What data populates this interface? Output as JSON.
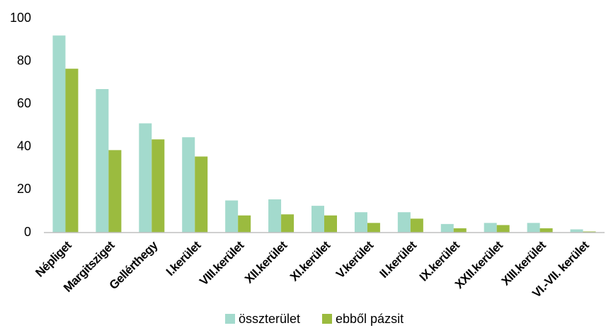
{
  "chart_data": {
    "type": "bar",
    "categories": [
      "Népliget",
      "Margitsziget",
      "Gellérthegy",
      "I.kerület",
      "VIII.kerület",
      "XII.kerület",
      "XI.kerület",
      "V.kerület",
      "II.kerület",
      "IX.kerület",
      "XXII.kerület",
      "XIII.kerület",
      "VI.-VII. kerület"
    ],
    "series": [
      {
        "name": "összterület",
        "color": "#a3dacd",
        "values": [
          92,
          67,
          51,
          44.5,
          15,
          15.5,
          12.5,
          9.5,
          9.5,
          4,
          4.5,
          4.5,
          1.5
        ]
      },
      {
        "name": "ebből pázsit",
        "color": "#9bbb3f",
        "values": [
          76.5,
          38.5,
          43.5,
          35.5,
          8,
          8.5,
          8,
          4.5,
          6.5,
          2,
          3.5,
          2,
          0.5
        ]
      }
    ],
    "ylim": [
      0,
      100
    ],
    "yticks": [
      0,
      20,
      40,
      60,
      80,
      100
    ],
    "grid": false,
    "legend": "bottom"
  }
}
